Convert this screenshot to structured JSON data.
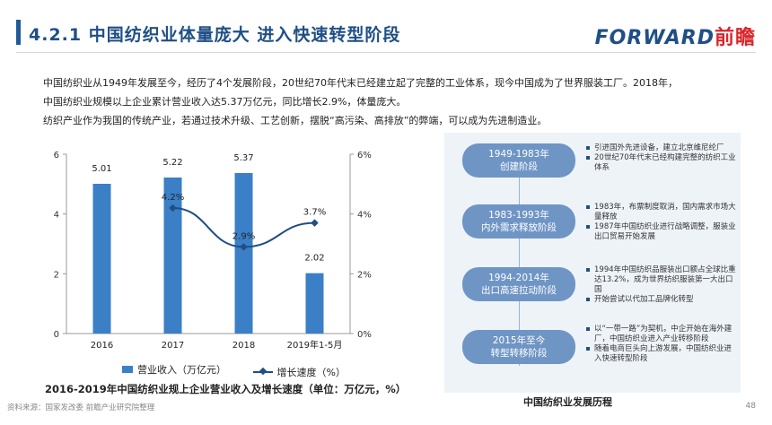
{
  "header": {
    "title": "4.2.1 中国纺织业体量庞大 进入快速转型阶段",
    "logo_latin": "FORWARD",
    "logo_cn": "前瞻"
  },
  "paragraphs": [
    "中国纺织业从1949年发展至今，经历了4个发展阶段，20世纪70年代末已经建立起了完整的工业体系，现今中国成为了世界服装工厂。2018年，",
    "中国纺织业规模以上企业累计营业收入达5.37万亿元，同比增长2.9%，体量庞大。",
    "纺织产业作为我国的传统产业，若通过技术升级、工艺创新，摆脱“高污染、高排放”的弊端，可以成为先进制造业。"
  ],
  "chart_data": {
    "type": "bar",
    "categories": [
      "2016",
      "2017",
      "2018",
      "2019年1-5月"
    ],
    "series": [
      {
        "name": "营业收入（万亿元）",
        "type": "bar",
        "axis": "left",
        "values": [
          5.01,
          5.22,
          5.37,
          2.02
        ],
        "labels": [
          "5.01",
          "5.22",
          "5.37",
          "2.02"
        ],
        "color": "#3b7fc7"
      },
      {
        "name": "增长速度（%）",
        "type": "line",
        "axis": "right",
        "values": [
          null,
          4.2,
          2.9,
          3.7
        ],
        "labels": [
          "",
          "4.2%",
          "2.9%",
          "3.7%"
        ],
        "color": "#1f4f86"
      }
    ],
    "ylim": [
      0,
      6
    ],
    "yticks": [
      "0",
      "2",
      "4",
      "6"
    ],
    "y2lim": [
      0,
      6
    ],
    "y2ticks": [
      "0%",
      "2%",
      "4%",
      "6%"
    ],
    "legend_position": "bottom",
    "title": "2016-2019年中国纺织业规上企业营业收入及增长速度（单位：万亿元，%）"
  },
  "stages": [
    {
      "period": "1949-1983年",
      "name": "创建阶段",
      "bullets": [
        "引进国外先进设备，建立北京维尼纶厂",
        "20世纪70年代末已经构建完整的纺织工业体系"
      ]
    },
    {
      "period": "1983-1993年",
      "name": "内外需求释放阶段",
      "bullets": [
        "1983年，布票制度取消，国内需求市场大量释放",
        "1987年中国纺织业进行战略调整，服装业出口贸易开始发展"
      ]
    },
    {
      "period": "1994-2014年",
      "name": "出口高速拉动阶段",
      "bullets": [
        "1994年中国纺织品服装出口额占全球比重达13.2%，成为世界纺织服装第一大出口国",
        "开始尝试以代加工品牌化转型"
      ]
    },
    {
      "period": "2015年至今",
      "name": "转型转移阶段",
      "bullets": [
        "以“一带一路”为契机，中企开始在海外建厂，中国纺织业进入产业转移阶段",
        "随着电商巨头向上游发展，中国纺织业进入快速转型阶段"
      ]
    }
  ],
  "panel_title": "中国纺织业发展历程",
  "footer": {
    "source": "资料来源：国家发改委 前瞻产业研究院整理",
    "page": "48"
  },
  "colors": {
    "accent": "#1f4f86",
    "bar": "#3b7fc7",
    "stage": "#6f95c5",
    "panel_bg": "#eef3f8",
    "logo_cn": "#d9262a"
  }
}
